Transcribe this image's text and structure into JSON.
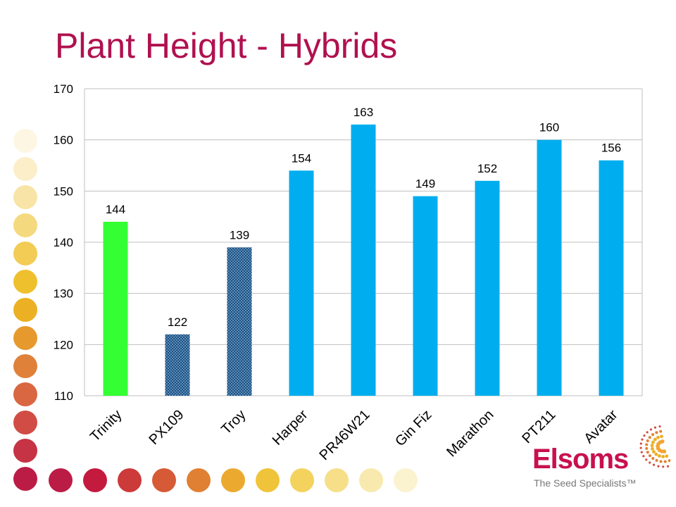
{
  "title": "Plant Height - Hybrids",
  "colors": {
    "title": "#b0114f",
    "trinity": "#33ff33",
    "checker": "#1f4e79",
    "blue": "#00aeef",
    "grid": "#bfbfbf"
  },
  "chart_data": {
    "type": "bar",
    "title": "Plant Height - Hybrids",
    "xlabel": "",
    "ylabel": "",
    "ylim": [
      110,
      170
    ],
    "yticks": [
      110,
      120,
      130,
      140,
      150,
      160,
      170
    ],
    "grid": true,
    "categories": [
      "Trinity",
      "PX109",
      "Troy",
      "Harper",
      "PR46W21",
      "Gin Fiz",
      "Marathon",
      "PT211",
      "Avatar"
    ],
    "values": [
      144,
      122,
      139,
      154,
      163,
      149,
      152,
      160,
      156
    ],
    "bar_styles": [
      "green",
      "checker",
      "checker",
      "blue",
      "blue",
      "blue",
      "blue",
      "blue",
      "blue"
    ],
    "data_labels": [
      "144",
      "122",
      "139",
      "154",
      "163",
      "149",
      "152",
      "160",
      "156"
    ]
  },
  "logo": {
    "name": "Elsoms",
    "tagline": "The Seed Specialists™"
  },
  "decor": {
    "dot_colors_left": [
      "#fdf6e3",
      "#fbeec9",
      "#f8e4a6",
      "#f5d97f",
      "#f2cc55",
      "#efc02e",
      "#ebb023",
      "#e69a2e",
      "#e0813a",
      "#d96742",
      "#d14c45",
      "#c63345",
      "#bb1c46"
    ],
    "dot_colors_bottom": [
      "#bb1c46",
      "#c41a3e",
      "#cc3a3a",
      "#d65a36",
      "#e08033",
      "#ebaa2f",
      "#f0c43a",
      "#f3d25e",
      "#f6df88",
      "#f8e9ae",
      "#fbf2d0"
    ]
  }
}
